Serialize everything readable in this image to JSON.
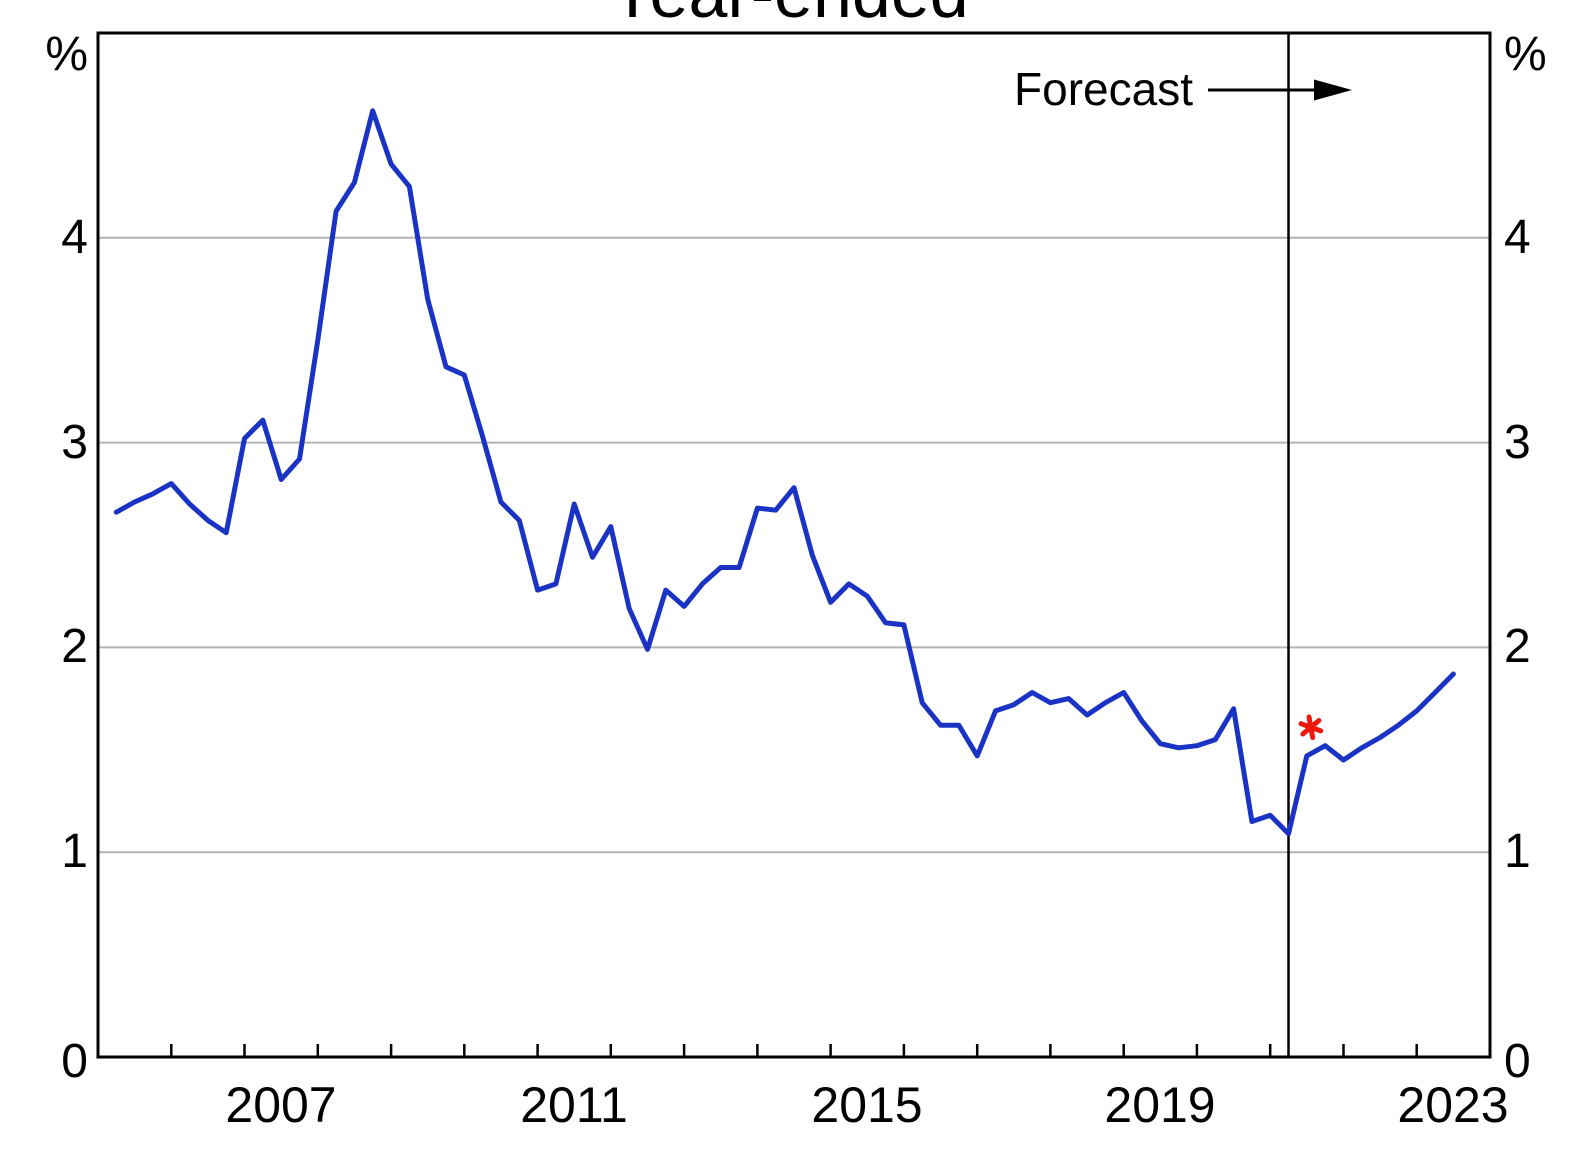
{
  "title": {
    "text": "Year-ended"
  },
  "annotations": {
    "forecast": "Forecast"
  },
  "axes": {
    "y_left": {
      "unit": "%",
      "ticks": [
        "4",
        "3",
        "2",
        "1",
        "0"
      ]
    },
    "y_right": {
      "unit": "%",
      "ticks": [
        "4",
        "3",
        "2",
        "1",
        "0"
      ]
    },
    "x": {
      "labels": [
        "2007",
        "2011",
        "2015",
        "2019",
        "2023"
      ]
    }
  },
  "chart_data": {
    "type": "line",
    "title": "Year-ended",
    "xlabel": "",
    "ylabel": "%",
    "xlim": [
      2005,
      2024
    ],
    "ylim": [
      0,
      5
    ],
    "grid_y": [
      1,
      2,
      3,
      4
    ],
    "x_ticks": [
      2006,
      2007,
      2008,
      2009,
      2010,
      2011,
      2012,
      2013,
      2014,
      2015,
      2016,
      2017,
      2018,
      2019,
      2020,
      2021,
      2022,
      2023
    ],
    "x_label_centers": [
      2007.5,
      2011.5,
      2015.5,
      2019.5,
      2023.5
    ],
    "forecast_divider_x": 2021.25,
    "forecast_label": "Forecast",
    "marker": {
      "x": 2021.5,
      "y": 1.61,
      "shape": "asterisk",
      "color": "#ee170a"
    },
    "colors": {
      "line": "#1a33c4",
      "grid": "#b3b3b3",
      "frame": "#000000"
    },
    "series": [
      {
        "name": "year-ended-line",
        "points": [
          [
            2005.25,
            2.66
          ],
          [
            2005.5,
            2.71
          ],
          [
            2005.75,
            2.75
          ],
          [
            2006.0,
            2.8
          ],
          [
            2006.25,
            2.7
          ],
          [
            2006.5,
            2.62
          ],
          [
            2006.75,
            2.56
          ],
          [
            2007.0,
            3.02
          ],
          [
            2007.25,
            3.11
          ],
          [
            2007.5,
            2.82
          ],
          [
            2007.75,
            2.92
          ],
          [
            2008.0,
            3.5
          ],
          [
            2008.25,
            4.13
          ],
          [
            2008.5,
            4.27
          ],
          [
            2008.75,
            4.62
          ],
          [
            2009.0,
            4.36
          ],
          [
            2009.25,
            4.25
          ],
          [
            2009.5,
            3.7
          ],
          [
            2009.75,
            3.37
          ],
          [
            2010.0,
            3.33
          ],
          [
            2010.25,
            3.03
          ],
          [
            2010.5,
            2.71
          ],
          [
            2010.75,
            2.62
          ],
          [
            2011.0,
            2.28
          ],
          [
            2011.25,
            2.31
          ],
          [
            2011.5,
            2.7
          ],
          [
            2011.75,
            2.44
          ],
          [
            2012.0,
            2.59
          ],
          [
            2012.25,
            2.19
          ],
          [
            2012.5,
            1.99
          ],
          [
            2012.75,
            2.28
          ],
          [
            2013.0,
            2.2
          ],
          [
            2013.25,
            2.31
          ],
          [
            2013.5,
            2.39
          ],
          [
            2013.75,
            2.39
          ],
          [
            2014.0,
            2.68
          ],
          [
            2014.25,
            2.67
          ],
          [
            2014.5,
            2.78
          ],
          [
            2014.75,
            2.45
          ],
          [
            2015.0,
            2.22
          ],
          [
            2015.25,
            2.31
          ],
          [
            2015.5,
            2.25
          ],
          [
            2015.75,
            2.12
          ],
          [
            2016.0,
            2.11
          ],
          [
            2016.25,
            1.73
          ],
          [
            2016.5,
            1.62
          ],
          [
            2016.75,
            1.62
          ],
          [
            2017.0,
            1.47
          ],
          [
            2017.25,
            1.69
          ],
          [
            2017.5,
            1.72
          ],
          [
            2017.75,
            1.78
          ],
          [
            2018.0,
            1.73
          ],
          [
            2018.25,
            1.75
          ],
          [
            2018.5,
            1.67
          ],
          [
            2018.75,
            1.73
          ],
          [
            2019.0,
            1.78
          ],
          [
            2019.25,
            1.64
          ],
          [
            2019.5,
            1.53
          ],
          [
            2019.75,
            1.51
          ],
          [
            2020.0,
            1.52
          ],
          [
            2020.25,
            1.55
          ],
          [
            2020.5,
            1.7
          ],
          [
            2020.75,
            1.15
          ],
          [
            2021.0,
            1.18
          ],
          [
            2021.25,
            1.09
          ],
          [
            2021.5,
            1.47
          ],
          [
            2021.75,
            1.52
          ],
          [
            2022.0,
            1.45
          ],
          [
            2022.25,
            1.51
          ],
          [
            2022.5,
            1.56
          ],
          [
            2022.75,
            1.62
          ],
          [
            2023.0,
            1.69
          ],
          [
            2023.25,
            1.78
          ],
          [
            2023.5,
            1.87
          ]
        ]
      }
    ]
  }
}
